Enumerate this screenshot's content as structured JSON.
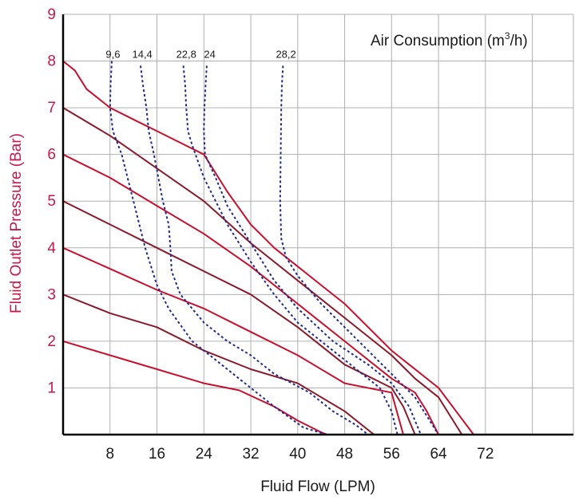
{
  "chart_data": {
    "type": "line",
    "xlabel": "Fluid Flow (LPM)",
    "ylabel": "Fluid Outlet Pressure (Bar)",
    "legend_title": "Air Consumption (m",
    "legend_sup": "3",
    "legend_suffix": "/h)",
    "xlim": [
      0,
      87
    ],
    "ylim": [
      0,
      9
    ],
    "x_ticks": [
      8,
      16,
      24,
      32,
      40,
      48,
      56,
      64,
      72
    ],
    "x_tick_labels": [
      "8",
      "16",
      "24",
      "32",
      "40",
      "48",
      "56",
      "64",
      "72"
    ],
    "y_ticks": [
      1,
      2,
      3,
      4,
      5,
      6,
      7,
      8,
      9
    ],
    "y_tick_labels": [
      "1",
      "2",
      "3",
      "4",
      "5",
      "6",
      "7",
      "8",
      "9"
    ],
    "grid": true,
    "colors": {
      "pressure_a": "#c8102e",
      "pressure_b": "#8b1a2b",
      "air": "#1f2a8c",
      "grid": "#b0b0b0",
      "axis": "#000000",
      "ylabel": "#c8184a"
    },
    "pressure_curves": [
      {
        "color": "#c8102e",
        "points": [
          [
            0,
            8
          ],
          [
            2,
            7.8
          ],
          [
            4,
            7.4
          ],
          [
            8,
            7
          ],
          [
            12,
            6.75
          ],
          [
            16,
            6.5
          ],
          [
            20,
            6.25
          ],
          [
            24,
            6.0
          ],
          [
            28,
            5.2
          ],
          [
            32,
            4.5
          ],
          [
            36,
            4.0
          ],
          [
            40,
            3.6
          ],
          [
            48,
            2.8
          ],
          [
            56,
            1.8
          ],
          [
            64,
            1.0
          ],
          [
            67,
            0.5
          ],
          [
            70,
            0
          ]
        ]
      },
      {
        "color": "#8b1a2b",
        "points": [
          [
            0,
            7
          ],
          [
            8,
            6.4
          ],
          [
            16,
            5.7
          ],
          [
            24,
            5.0
          ],
          [
            32,
            4.1
          ],
          [
            40,
            3.3
          ],
          [
            48,
            2.5
          ],
          [
            56,
            1.7
          ],
          [
            60,
            1.2
          ],
          [
            64,
            0.8
          ],
          [
            68,
            0
          ]
        ]
      },
      {
        "color": "#c8102e",
        "points": [
          [
            0,
            6
          ],
          [
            8,
            5.5
          ],
          [
            16,
            4.9
          ],
          [
            24,
            4.3
          ],
          [
            32,
            3.6
          ],
          [
            40,
            2.8
          ],
          [
            48,
            2.0
          ],
          [
            56,
            1.2
          ],
          [
            60,
            0.9
          ],
          [
            62,
            0.5
          ],
          [
            64,
            0
          ]
        ]
      },
      {
        "color": "#8b1a2b",
        "points": [
          [
            0,
            5
          ],
          [
            8,
            4.5
          ],
          [
            16,
            4.0
          ],
          [
            24,
            3.5
          ],
          [
            32,
            3.0
          ],
          [
            40,
            2.3
          ],
          [
            48,
            1.5
          ],
          [
            56,
            1.0
          ],
          [
            58,
            0.6
          ],
          [
            60,
            0
          ]
        ]
      },
      {
        "color": "#c8102e",
        "points": [
          [
            0,
            4
          ],
          [
            8,
            3.55
          ],
          [
            16,
            3.1
          ],
          [
            24,
            2.7
          ],
          [
            32,
            2.2
          ],
          [
            40,
            1.7
          ],
          [
            48,
            1.1
          ],
          [
            56,
            0.9
          ],
          [
            58,
            0
          ]
        ]
      },
      {
        "color": "#8b1a2b",
        "points": [
          [
            0,
            3
          ],
          [
            8,
            2.6
          ],
          [
            16,
            2.3
          ],
          [
            24,
            1.8
          ],
          [
            32,
            1.4
          ],
          [
            40,
            1.1
          ],
          [
            48,
            0.5
          ],
          [
            53,
            0
          ]
        ]
      },
      {
        "color": "#c8102e",
        "points": [
          [
            0,
            2
          ],
          [
            8,
            1.7
          ],
          [
            16,
            1.4
          ],
          [
            24,
            1.1
          ],
          [
            30,
            0.95
          ],
          [
            36,
            0.6
          ],
          [
            40,
            0.3
          ],
          [
            44,
            0.05
          ],
          [
            45,
            0
          ]
        ]
      }
    ],
    "air_curves": [
      {
        "name": "9,6",
        "label_x": 8.5,
        "points": [
          [
            8.3,
            8.0
          ],
          [
            8.1,
            7.5
          ],
          [
            8.0,
            7.0
          ],
          [
            8.5,
            6.5
          ],
          [
            10,
            6.0
          ],
          [
            12,
            5.0
          ],
          [
            14,
            4.0
          ],
          [
            16,
            3.2
          ],
          [
            18,
            2.7
          ],
          [
            22,
            2.0
          ],
          [
            26,
            1.6
          ],
          [
            30,
            1.2
          ],
          [
            36,
            0.6
          ],
          [
            41,
            0.15
          ],
          [
            45,
            0
          ]
        ]
      },
      {
        "name": "14,4",
        "label_x": 13.5,
        "points": [
          [
            13.2,
            7.9
          ],
          [
            13.6,
            7.5
          ],
          [
            14.2,
            7.0
          ],
          [
            14.6,
            6.5
          ],
          [
            15.5,
            6.0
          ],
          [
            17,
            5.0
          ],
          [
            18,
            4.5
          ],
          [
            18.3,
            4.0
          ],
          [
            18.5,
            3.5
          ],
          [
            20,
            3.0
          ],
          [
            24,
            2.4
          ],
          [
            28,
            2.0
          ],
          [
            32,
            1.7
          ],
          [
            36,
            1.3
          ],
          [
            42,
            0.9
          ],
          [
            46,
            0.5
          ],
          [
            50,
            0.2
          ],
          [
            52,
            0
          ]
        ]
      },
      {
        "name": "22,8",
        "label_x": 21,
        "points": [
          [
            20.5,
            7.9
          ],
          [
            20.8,
            7.5
          ],
          [
            21,
            7.0
          ],
          [
            21.3,
            6.5
          ],
          [
            22,
            6.2
          ],
          [
            24,
            5.5
          ],
          [
            26,
            5.0
          ],
          [
            28,
            4.5
          ],
          [
            32,
            3.7
          ],
          [
            36,
            3.0
          ],
          [
            40,
            2.4
          ],
          [
            46,
            1.8
          ],
          [
            50,
            1.4
          ],
          [
            54,
            1.0
          ],
          [
            56,
            0.5
          ],
          [
            57,
            0
          ]
        ]
      },
      {
        "name": "24",
        "label_x": 25,
        "points": [
          [
            24.5,
            7.9
          ],
          [
            24.3,
            7.5
          ],
          [
            24.1,
            7.0
          ],
          [
            24,
            6.5
          ],
          [
            24.2,
            6.0
          ],
          [
            26,
            5.5
          ],
          [
            28,
            4.9
          ],
          [
            32,
            4.1
          ],
          [
            36,
            3.3
          ],
          [
            40,
            2.7
          ],
          [
            46,
            2.0
          ],
          [
            52,
            1.5
          ],
          [
            56,
            1.1
          ],
          [
            59,
            0.6
          ],
          [
            61,
            0
          ]
        ]
      },
      {
        "name": "28,2",
        "label_x": 38,
        "points": [
          [
            37.5,
            7.9
          ],
          [
            37.3,
            7.5
          ],
          [
            37.2,
            7.0
          ],
          [
            37.1,
            6.0
          ],
          [
            37,
            5.0
          ],
          [
            37.2,
            4.2
          ],
          [
            38,
            3.8
          ],
          [
            40,
            3.4
          ],
          [
            44,
            2.8
          ],
          [
            48,
            2.3
          ],
          [
            52,
            1.8
          ],
          [
            56,
            1.3
          ],
          [
            60,
            0.8
          ],
          [
            62,
            0.4
          ],
          [
            64,
            0
          ]
        ]
      }
    ]
  }
}
